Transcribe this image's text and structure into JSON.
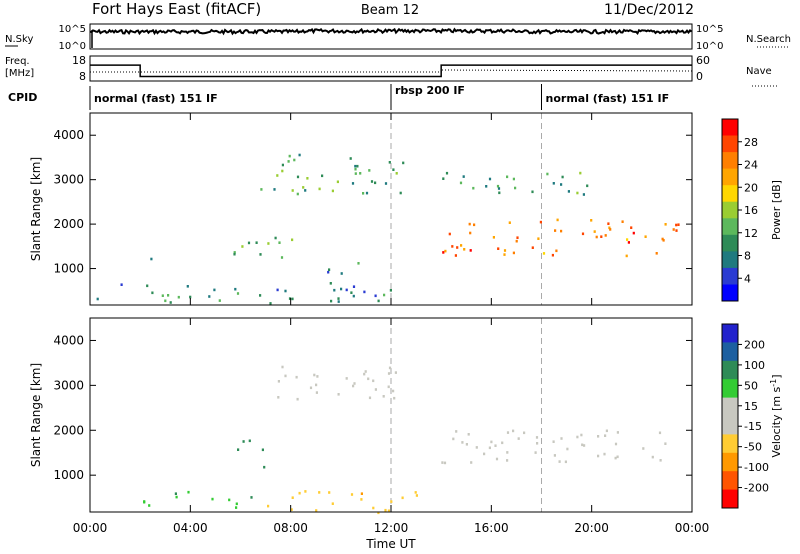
{
  "header": {
    "station": "Fort Hays East (fitACF)",
    "beam": "Beam 12",
    "date": "11/Dec/2012"
  },
  "noise_panel": {
    "left_label": "N.Sky",
    "left_ticks": [
      "10^5",
      "10^0"
    ],
    "right_label": "N.Search",
    "right_ticks": [
      "10^5",
      "10^0"
    ]
  },
  "freq_panel": {
    "left_label_line1": "Freq.",
    "left_label_line2": "[MHz]",
    "left_ticks": [
      "18",
      "8"
    ],
    "right_label": "Nave",
    "right_ticks": [
      "60",
      "0"
    ]
  },
  "cpid": {
    "label": "CPID",
    "segments": [
      {
        "start_hour": 0,
        "end_hour": 12,
        "name": "normal (fast) 151 IF"
      },
      {
        "start_hour": 12,
        "end_hour": 18,
        "name": "rbsp 200 IF"
      },
      {
        "start_hour": 18,
        "end_hour": 24,
        "name": "normal (fast) 151 IF"
      }
    ]
  },
  "x_axis": {
    "label": "Time UT",
    "ticks": [
      "00:00",
      "04:00",
      "08:00",
      "12:00",
      "16:00",
      "20:00",
      "00:00"
    ]
  },
  "power_panel": {
    "ylabel": "Slant Range [km]",
    "yticks": [
      "1000",
      "2000",
      "3000",
      "4000"
    ],
    "colorbar_label": "Power [dB]",
    "colorbar_ticks": [
      "4",
      "8",
      "12",
      "16",
      "20",
      "24",
      "28"
    ],
    "colors": [
      "#0000ff",
      "#2a3bd2",
      "#1f7a7f",
      "#2e8b57",
      "#5cb85c",
      "#9acd32",
      "#ffd700",
      "#ffa500",
      "#ff7f00",
      "#ff4500",
      "#ff0000"
    ]
  },
  "velocity_panel": {
    "ylabel": "Slant Range [km]",
    "yticks": [
      "1000",
      "2000",
      "3000",
      "4000"
    ],
    "colorbar_label": "Velocity [m s",
    "colorbar_label_sup": "-1",
    "colorbar_label_end": "]",
    "colorbar_ticks": [
      "200",
      "100",
      "50",
      "15",
      "-15",
      "-50",
      "-100",
      "-200"
    ],
    "colors": [
      "#2222cc",
      "#1c5fa0",
      "#2e8b57",
      "#33cc33",
      "#c8c8c0",
      "#c8c8c0",
      "#ffcc33",
      "#ff9900",
      "#ff5500",
      "#ff0000"
    ]
  },
  "chart_data": {
    "type": "heatmap",
    "title": "Fort Hays East (fitACF)",
    "x_range_hours": [
      0,
      24
    ],
    "y_range_km": [
      180,
      4500
    ],
    "xlabel": "Time UT",
    "ylabel": "Slant Range [km]",
    "frequency_mhz": [
      {
        "start_hour": 0,
        "end_hour": 2,
        "value": 14
      },
      {
        "start_hour": 2,
        "end_hour": 12,
        "value": 9
      },
      {
        "start_hour": 12,
        "end_hour": 14,
        "value": 9
      },
      {
        "start_hour": 14,
        "end_hour": 24,
        "value": 14
      }
    ],
    "power_regions_db": [
      {
        "t0": 0.2,
        "t1": 12.0,
        "r0": 200,
        "r1": 700,
        "power": 10
      },
      {
        "t0": 2.0,
        "t1": 2.5,
        "r0": 1100,
        "r1": 1450,
        "power": 8
      },
      {
        "t0": 5.7,
        "t1": 8.5,
        "r0": 1200,
        "r1": 1800,
        "power": 12
      },
      {
        "t0": 6.0,
        "t1": 12.5,
        "r0": 2700,
        "r1": 3600,
        "power": 12
      },
      {
        "t0": 9.0,
        "t1": 11.0,
        "r0": 900,
        "r1": 1200,
        "power": 10
      },
      {
        "t0": 14.0,
        "t1": 23.5,
        "r0": 1300,
        "r1": 2200,
        "power": 26
      },
      {
        "t0": 14.0,
        "t1": 20.0,
        "r0": 2600,
        "r1": 3200,
        "power": 12
      }
    ],
    "velocity_regions_ms": [
      {
        "t0": 2.0,
        "t1": 6.5,
        "r0": 300,
        "r1": 700,
        "velocity": 40
      },
      {
        "t0": 7.0,
        "t1": 13.0,
        "r0": 180,
        "r1": 700,
        "velocity": -40
      },
      {
        "t0": 5.7,
        "t1": 7.0,
        "r0": 1200,
        "r1": 1800,
        "velocity": 60
      },
      {
        "t0": 7.0,
        "t1": 12.5,
        "r0": 2700,
        "r1": 3500,
        "velocity": 0
      },
      {
        "t0": 14.0,
        "t1": 23.5,
        "r0": 1300,
        "r1": 2100,
        "velocity": 0
      }
    ]
  }
}
